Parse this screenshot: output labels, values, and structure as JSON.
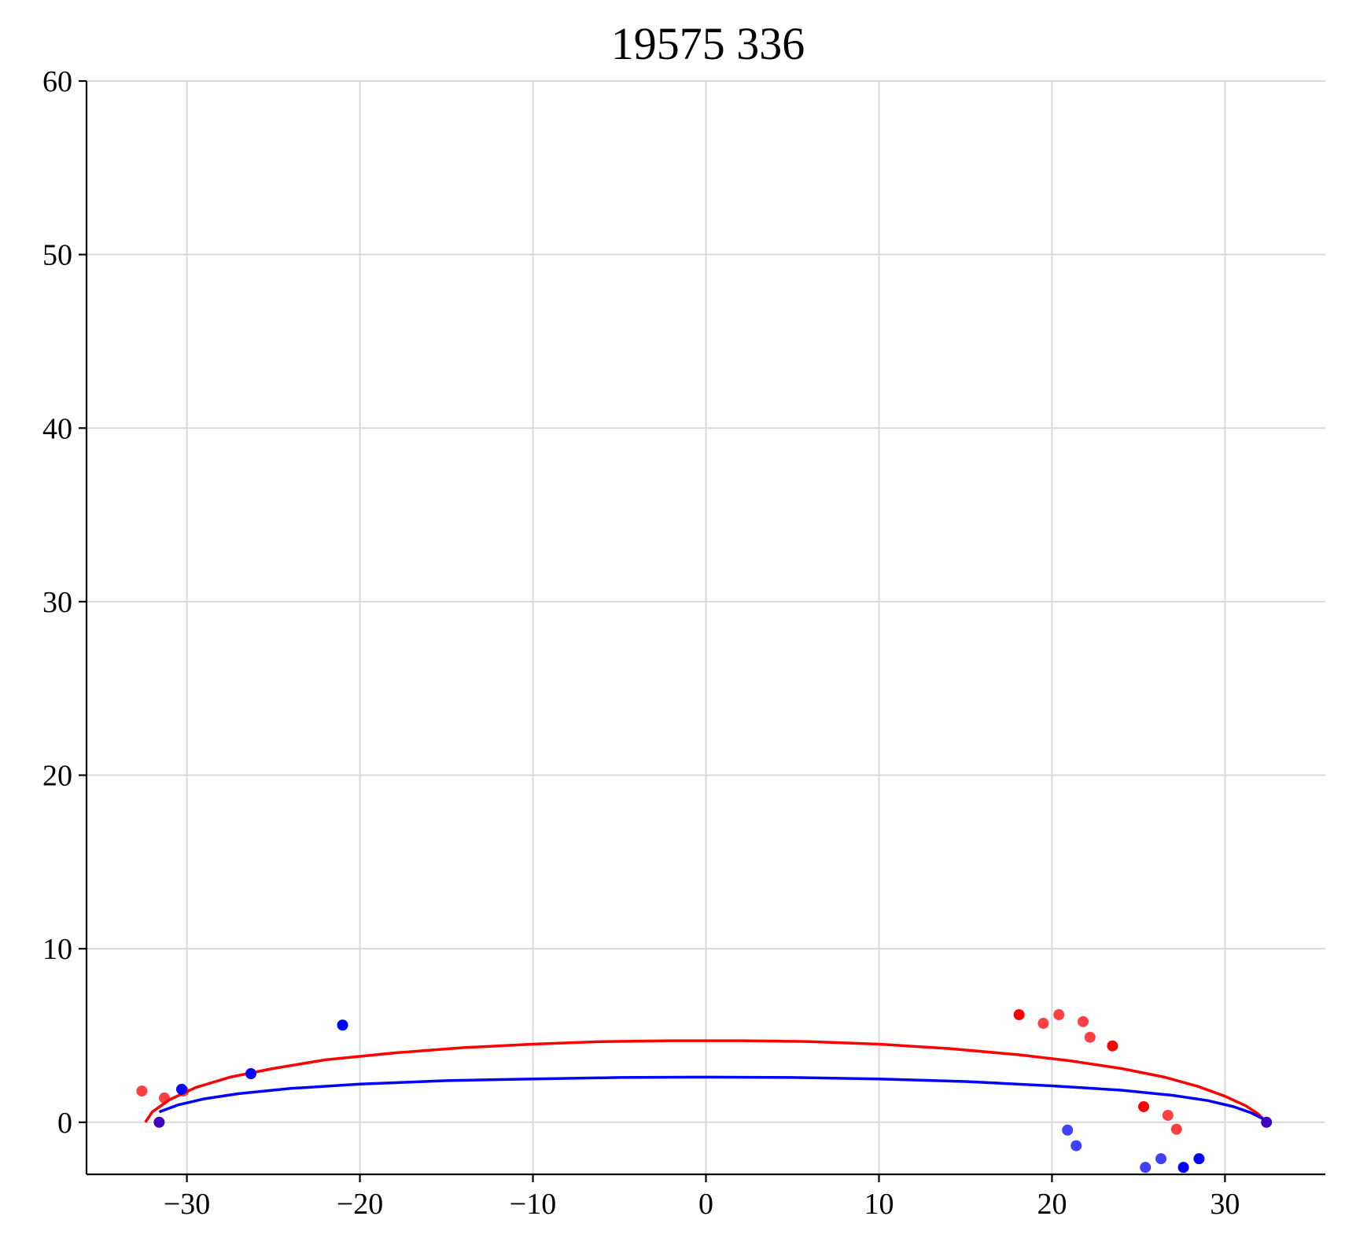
{
  "chart_data": {
    "type": "scatter",
    "title": "19575 336",
    "xlabel": "",
    "ylabel": "",
    "xlim": [
      -35.8,
      35.8
    ],
    "ylim": [
      -3.0,
      60.0
    ],
    "xticks": [
      -30,
      -20,
      -10,
      0,
      10,
      20,
      30
    ],
    "xtick_labels": [
      "−30",
      "−20",
      "−10",
      "0",
      "10",
      "20",
      "30"
    ],
    "yticks": [
      0,
      10,
      20,
      30,
      40,
      50,
      60
    ],
    "ytick_labels": [
      "0",
      "10",
      "20",
      "30",
      "40",
      "50",
      "60"
    ],
    "grid": true,
    "legend": "none",
    "colors": {
      "red": "#ff0000",
      "blue": "#0000ff"
    },
    "curves": [
      {
        "color": "#ff0000",
        "x": [
          -32.4,
          -32.0,
          -31.0,
          -29.5,
          -27.5,
          -25.0,
          -22.0,
          -18.0,
          -14.0,
          -10.0,
          -6.0,
          -2.0,
          2.0,
          6.0,
          10.0,
          14.0,
          18.0,
          21.0,
          24.0,
          26.5,
          28.5,
          30.0,
          31.2,
          31.9,
          32.3
        ],
        "y": [
          0.0,
          0.6,
          1.3,
          2.0,
          2.6,
          3.1,
          3.6,
          4.0,
          4.3,
          4.5,
          4.65,
          4.7,
          4.7,
          4.65,
          4.5,
          4.25,
          3.9,
          3.55,
          3.1,
          2.6,
          2.05,
          1.5,
          0.95,
          0.5,
          0.1
        ]
      },
      {
        "color": "#0000ff",
        "x": [
          -31.6,
          -30.5,
          -29.0,
          -27.0,
          -24.0,
          -20.0,
          -15.0,
          -10.0,
          -5.0,
          0.0,
          5.0,
          10.0,
          15.0,
          20.0,
          24.0,
          27.0,
          29.0,
          30.5,
          31.5,
          32.2
        ],
        "y": [
          0.6,
          1.0,
          1.35,
          1.65,
          1.95,
          2.2,
          2.4,
          2.5,
          2.58,
          2.6,
          2.58,
          2.5,
          2.35,
          2.1,
          1.85,
          1.55,
          1.25,
          0.9,
          0.55,
          0.2
        ]
      }
    ],
    "series": [
      {
        "color": "#ff0000",
        "points": [
          [
            -32.6,
            1.8,
            0.75
          ],
          [
            -31.3,
            1.4,
            0.75
          ],
          [
            -30.2,
            1.8,
            0.75
          ],
          [
            18.1,
            6.2,
            1.0
          ],
          [
            19.5,
            5.7,
            0.75
          ],
          [
            20.4,
            6.2,
            0.75
          ],
          [
            21.8,
            5.8,
            0.75
          ],
          [
            22.2,
            4.9,
            0.75
          ],
          [
            23.5,
            4.4,
            1.0
          ],
          [
            25.3,
            0.9,
            1.0
          ],
          [
            26.7,
            0.4,
            0.75
          ],
          [
            27.2,
            -0.4,
            0.75
          ]
        ]
      },
      {
        "color": "#0000ff",
        "points": [
          [
            -30.3,
            1.9,
            1.0
          ],
          [
            -26.3,
            2.8,
            1.0
          ],
          [
            -21.0,
            5.6,
            1.0
          ],
          [
            20.9,
            -0.45,
            0.75
          ],
          [
            21.4,
            -1.35,
            0.75
          ],
          [
            25.4,
            -2.6,
            0.75
          ],
          [
            26.3,
            -2.1,
            0.75
          ],
          [
            27.6,
            -2.6,
            1.0
          ],
          [
            28.5,
            -2.1,
            1.0
          ]
        ]
      },
      {
        "color": "#4000c0",
        "points": [
          [
            -31.6,
            0.0,
            1.0
          ],
          [
            32.4,
            0.0,
            1.0
          ]
        ]
      }
    ]
  }
}
